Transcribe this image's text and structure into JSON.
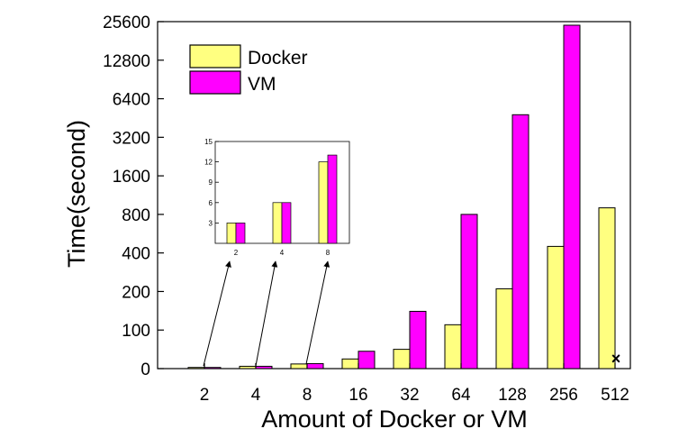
{
  "chart_data": {
    "type": "bar",
    "xlabel": "Amount of Docker or VM",
    "ylabel": "Time(second)",
    "categories": [
      "2",
      "4",
      "8",
      "16",
      "32",
      "64",
      "128",
      "256",
      "512"
    ],
    "y_scale": "log-like (0, 100, 200, 400, 800, ... 25600)",
    "y_ticks": [
      "0",
      "100",
      "200",
      "400",
      "800",
      "1600",
      "3200",
      "6400",
      "12800",
      "25600"
    ],
    "series": [
      {
        "name": "Docker",
        "color": "#ffff80",
        "values": [
          3,
          6,
          12,
          25,
          50,
          110,
          210,
          450,
          900
        ]
      },
      {
        "name": "VM",
        "color": "#ff00ff",
        "values": [
          3,
          6,
          13,
          45,
          140,
          800,
          4800,
          24000,
          null
        ]
      }
    ],
    "missing_marker": "×",
    "legend_position": "top-left",
    "inset": {
      "categories": [
        "2",
        "4",
        "8"
      ],
      "y_ticks": [
        "3",
        "6",
        "9",
        "12",
        "15"
      ],
      "ylim": [
        0,
        15
      ],
      "docker": [
        3,
        6,
        12
      ],
      "vm": [
        3,
        6,
        13
      ]
    }
  }
}
